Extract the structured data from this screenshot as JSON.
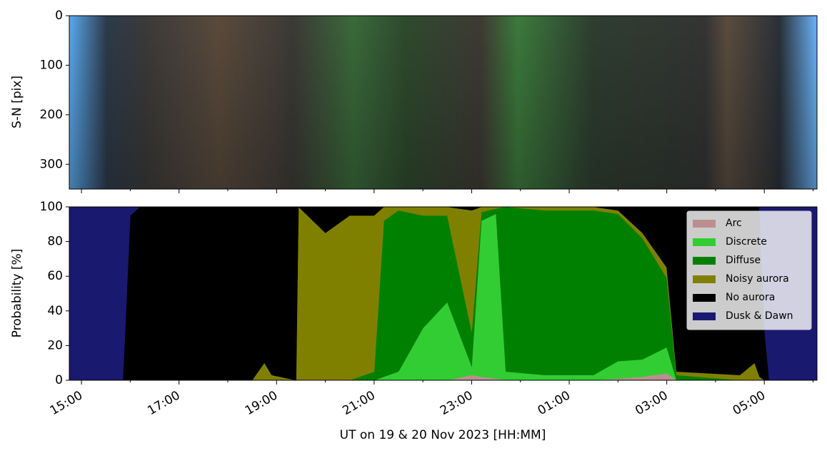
{
  "chart_data": [
    {
      "type": "image",
      "ylabel": "S-N [pix]",
      "ylim": [
        350,
        0
      ],
      "yticks": [
        0,
        100,
        200,
        300
      ]
    },
    {
      "type": "area",
      "ylabel": "Probability [%]",
      "xlabel": "UT on 19 & 20 Nov 2023 [HH:MM]",
      "xlim": [
        14.75,
        30.08
      ],
      "ylim": [
        0,
        100
      ],
      "yticks": [
        0,
        20,
        40,
        60,
        80,
        100
      ],
      "xticks": [
        {
          "value": 15,
          "label": "15:00"
        },
        {
          "value": 17,
          "label": "17:00"
        },
        {
          "value": 19,
          "label": "19:00"
        },
        {
          "value": 21,
          "label": "21:00"
        },
        {
          "value": 23,
          "label": "23:00"
        },
        {
          "value": 25,
          "label": "01:00"
        },
        {
          "value": 27,
          "label": "03:00"
        },
        {
          "value": 29,
          "label": "05:00"
        }
      ],
      "xticks_minor": [
        16,
        18,
        20,
        22,
        24,
        26,
        28,
        30
      ],
      "legend": "upper right",
      "stacked": true,
      "x": [
        14.75,
        15.85,
        16.0,
        16.2,
        18.5,
        18.75,
        18.9,
        19.4,
        19.45,
        20.0,
        20.5,
        21.0,
        21.2,
        21.5,
        22.0,
        22.5,
        23.0,
        23.2,
        23.5,
        23.7,
        24.5,
        25.5,
        26.0,
        26.5,
        27.0,
        27.2,
        28.5,
        28.8,
        28.9,
        29.0,
        29.1,
        30.08
      ],
      "series": [
        {
          "name": "Arc",
          "color": "#bc8f8f",
          "values": [
            0,
            0,
            0,
            0,
            0,
            0,
            0,
            0,
            0,
            0,
            0,
            0,
            0,
            0,
            0,
            0,
            3,
            2,
            1,
            0,
            0,
            0,
            1,
            2,
            4,
            0,
            0,
            0,
            0,
            0,
            0,
            0
          ]
        },
        {
          "name": "Discrete",
          "color": "#32cd32",
          "values": [
            0,
            0,
            0,
            0,
            0,
            0,
            0,
            0,
            0,
            0,
            0,
            0,
            2,
            5,
            30,
            45,
            5,
            90,
            95,
            5,
            3,
            3,
            10,
            10,
            15,
            0,
            0,
            0,
            0,
            0,
            0,
            0
          ]
        },
        {
          "name": "Diffuse",
          "color": "#008000",
          "values": [
            0,
            0,
            0,
            0,
            0,
            0,
            0,
            0,
            0,
            0,
            0,
            5,
            90,
            93,
            65,
            50,
            20,
            5,
            3,
            95,
            95,
            95,
            85,
            70,
            40,
            3,
            0,
            0,
            0,
            0,
            0,
            0
          ]
        },
        {
          "name": "Noisy aurora",
          "color": "#808000",
          "values": [
            0,
            0,
            0,
            0,
            0,
            10,
            3,
            0,
            100,
            85,
            95,
            90,
            8,
            2,
            5,
            5,
            70,
            3,
            1,
            0,
            2,
            2,
            2,
            3,
            6,
            2,
            3,
            10,
            2,
            0,
            0,
            0
          ]
        },
        {
          "name": "No aurora",
          "color": "#000000",
          "values": [
            0,
            0,
            95,
            100,
            100,
            90,
            97,
            100,
            0,
            15,
            5,
            5,
            0,
            0,
            0,
            0,
            2,
            0,
            0,
            0,
            0,
            0,
            2,
            15,
            35,
            95,
            97,
            90,
            98,
            30,
            0,
            0
          ]
        },
        {
          "name": "Dusk & Dawn",
          "color": "#191970",
          "values": [
            100,
            100,
            5,
            0,
            0,
            0,
            0,
            0,
            0,
            0,
            0,
            0,
            0,
            0,
            0,
            0,
            0,
            0,
            0,
            0,
            0,
            0,
            0,
            0,
            0,
            0,
            0,
            0,
            0,
            70,
            100,
            100
          ]
        }
      ]
    }
  ]
}
